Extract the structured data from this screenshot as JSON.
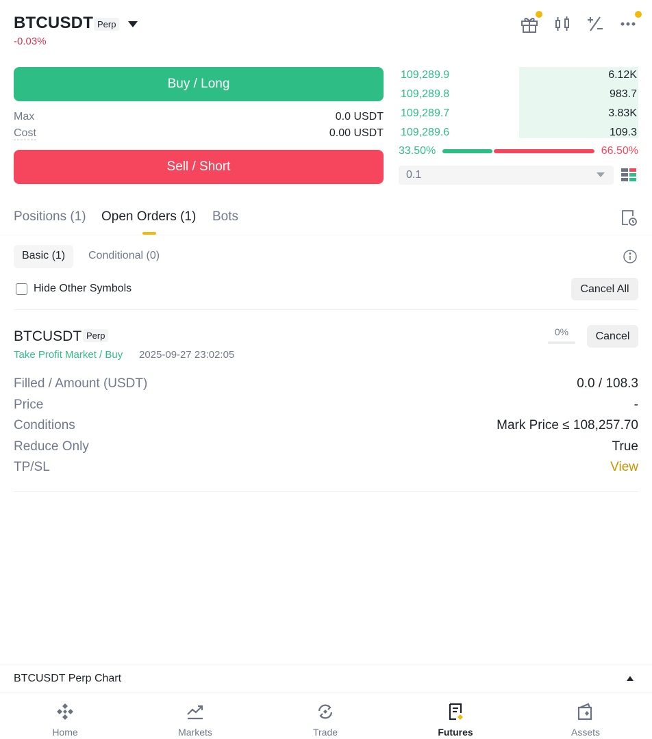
{
  "header": {
    "symbol": "BTCUSDT",
    "badge": "Perp",
    "change": "-0.03%",
    "icons": [
      "gift-icon",
      "candlestick-icon",
      "plus-minus-icon",
      "more-icon"
    ],
    "accent": "#f0b90b"
  },
  "trade": {
    "buy_label": "Buy / Long",
    "sell_label": "Sell / Short",
    "max_label": "Max",
    "max_value": "0.0 USDT",
    "cost_label": "Cost",
    "cost_value": "0.00 USDT",
    "buy_color": "#2ebd85",
    "sell_color": "#f6465d"
  },
  "orderbook": {
    "rows": [
      {
        "price": "109,289.9",
        "qty": "6.12K"
      },
      {
        "price": "109,289.8",
        "qty": "983.7"
      },
      {
        "price": "109,289.7",
        "qty": "3.83K"
      },
      {
        "price": "109,289.6",
        "qty": "109.3"
      }
    ],
    "buy_ratio": "33.50%",
    "sell_ratio": "66.50%",
    "depth_value": "0.1"
  },
  "tabs": [
    {
      "label": "Positions (1)"
    },
    {
      "label": "Open Orders (1)"
    },
    {
      "label": "Bots"
    }
  ],
  "subtabs": [
    {
      "label": "Basic (1)"
    },
    {
      "label": "Conditional (0)"
    }
  ],
  "filters": {
    "hide_label": "Hide Other Symbols",
    "cancel_all": "Cancel All"
  },
  "order": {
    "symbol": "BTCUSDT",
    "badge": "Perp",
    "type": "Take Profit Market / Buy",
    "time": "2025-09-27 23:02:05",
    "progress_label": "0%",
    "progress": 0,
    "cancel": "Cancel",
    "details": [
      {
        "key": "Filled / Amount (USDT)",
        "value": "0.0 / 108.3"
      },
      {
        "key": "Price",
        "value": "-"
      },
      {
        "key": "Conditions",
        "value": "Mark Price ≤ 108,257.70"
      },
      {
        "key": "Reduce Only",
        "value": "True"
      },
      {
        "key": "TP/SL",
        "value": "View"
      }
    ]
  },
  "chart_bar": {
    "title": "BTCUSDT Perp Chart"
  },
  "nav": [
    {
      "label": "Home",
      "icon": "home-icon"
    },
    {
      "label": "Markets",
      "icon": "markets-icon"
    },
    {
      "label": "Trade",
      "icon": "trade-icon"
    },
    {
      "label": "Futures",
      "icon": "futures-icon"
    },
    {
      "label": "Assets",
      "icon": "assets-icon"
    }
  ]
}
